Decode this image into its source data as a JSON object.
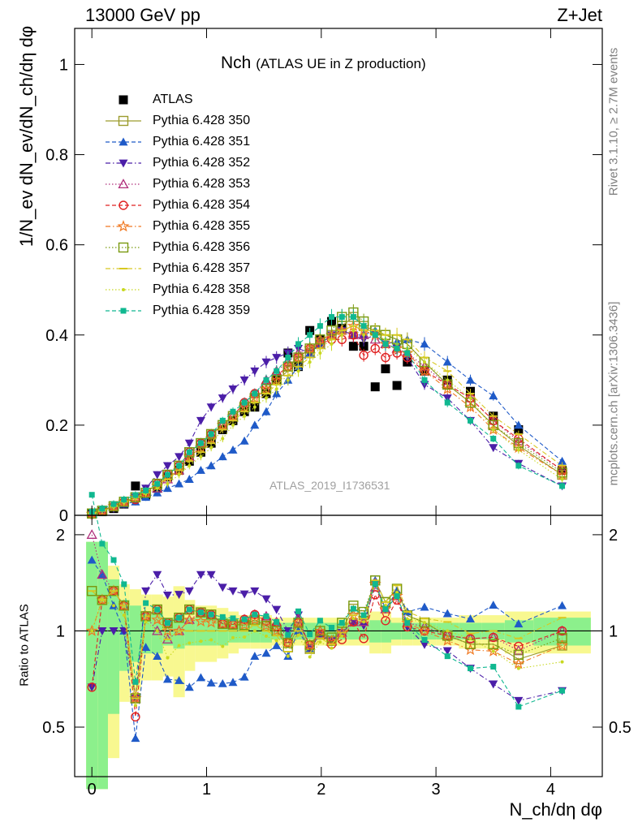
{
  "header": {
    "energy_label": "13000 GeV pp",
    "process_label": "Z+Jet",
    "title_main": "Nch",
    "title_sub": "(ATLAS UE in Z production)",
    "analysis_id": "ATLAS_2019_I1736531",
    "rivet_label": "Rivet 3.1.10, ≥ 2.7M events",
    "mcplots_label": "mcplots.cern.ch [arXiv:1306.3436]"
  },
  "axes": {
    "y_main_label": "1/N_ev dN_ev/dN_ch/dη dφ",
    "y_ratio_label": "Ratio to ATLAS",
    "x_label": "N_ch/dη dφ"
  },
  "chart_data": [
    {
      "type": "scatter",
      "panel": "main",
      "xlim": [
        -0.15,
        4.45
      ],
      "ylim": [
        0,
        1.08
      ],
      "x_ticks": [
        0,
        1,
        2,
        3,
        4
      ],
      "y_ticks": [
        "0",
        "0.2",
        "0.4",
        "0.6",
        "0.8",
        "1"
      ],
      "legend_placement": "top-left",
      "x": [
        0.0,
        0.09,
        0.19,
        0.28,
        0.38,
        0.47,
        0.57,
        0.66,
        0.76,
        0.85,
        0.95,
        1.04,
        1.14,
        1.23,
        1.33,
        1.42,
        1.52,
        1.61,
        1.71,
        1.8,
        1.9,
        1.99,
        2.09,
        2.18,
        2.28,
        2.37,
        2.47,
        2.56,
        2.66,
        2.75,
        2.9,
        3.1,
        3.3,
        3.5,
        3.72,
        4.1
      ],
      "series": [
        {
          "name": "ATLAS",
          "color": "#000000",
          "marker": "square-filled",
          "line": "none",
          "values": [
            0.003,
            0.008,
            0.015,
            0.025,
            0.065,
            0.045,
            0.06,
            0.085,
            0.1,
            0.12,
            0.14,
            0.16,
            0.19,
            0.21,
            0.23,
            0.24,
            0.27,
            0.3,
            0.36,
            0.33,
            0.41,
            0.39,
            0.43,
            0.415,
            0.375,
            0.375,
            0.285,
            0.325,
            0.288,
            0.34,
            0.32,
            0.3,
            0.275,
            0.22,
            0.19,
            0.1
          ]
        },
        {
          "name": "Pythia 6.428 350",
          "color": "#9c9c2e",
          "marker": "square-open",
          "line": "solid",
          "values": [
            0.004,
            0.01,
            0.02,
            0.03,
            0.04,
            0.05,
            0.07,
            0.09,
            0.11,
            0.14,
            0.16,
            0.18,
            0.2,
            0.22,
            0.24,
            0.26,
            0.28,
            0.3,
            0.32,
            0.34,
            0.36,
            0.38,
            0.4,
            0.42,
            0.44,
            0.42,
            0.41,
            0.4,
            0.39,
            0.38,
            0.34,
            0.29,
            0.25,
            0.2,
            0.155,
            0.09
          ]
        },
        {
          "name": "Pythia 6.428 351",
          "color": "#1f5ac8",
          "marker": "triangle-up",
          "line": "dashed",
          "values": [
            0.005,
            0.012,
            0.018,
            0.025,
            0.03,
            0.04,
            0.05,
            0.06,
            0.07,
            0.08,
            0.1,
            0.11,
            0.13,
            0.145,
            0.165,
            0.2,
            0.23,
            0.27,
            0.3,
            0.33,
            0.36,
            0.38,
            0.4,
            0.41,
            0.4,
            0.4,
            0.41,
            0.38,
            0.385,
            0.39,
            0.38,
            0.34,
            0.3,
            0.265,
            0.2,
            0.12
          ]
        },
        {
          "name": "Pythia 6.428 352",
          "color": "#4b1ea8",
          "marker": "triangle-down",
          "line": "dashdot",
          "values": [
            0.002,
            0.008,
            0.015,
            0.025,
            0.04,
            0.06,
            0.09,
            0.11,
            0.13,
            0.16,
            0.21,
            0.24,
            0.26,
            0.28,
            0.3,
            0.32,
            0.34,
            0.35,
            0.36,
            0.37,
            0.36,
            0.38,
            0.4,
            0.41,
            0.4,
            0.39,
            0.4,
            0.38,
            0.37,
            0.35,
            0.29,
            0.26,
            0.21,
            0.15,
            0.115,
            0.065
          ]
        },
        {
          "name": "Pythia 6.428 353",
          "color": "#b0307c",
          "marker": "triangle-up-open",
          "line": "dotted",
          "values": [
            0.006,
            0.012,
            0.02,
            0.03,
            0.04,
            0.05,
            0.06,
            0.08,
            0.1,
            0.13,
            0.16,
            0.18,
            0.2,
            0.22,
            0.25,
            0.27,
            0.3,
            0.32,
            0.34,
            0.36,
            0.37,
            0.39,
            0.4,
            0.41,
            0.4,
            0.4,
            0.39,
            0.38,
            0.37,
            0.36,
            0.33,
            0.29,
            0.26,
            0.21,
            0.165,
            0.1
          ]
        },
        {
          "name": "Pythia 6.428 354",
          "color": "#e02020",
          "marker": "circle-open",
          "line": "dashed",
          "values": [
            0.002,
            0.01,
            0.02,
            0.03,
            0.035,
            0.05,
            0.07,
            0.09,
            0.11,
            0.14,
            0.16,
            0.18,
            0.2,
            0.22,
            0.25,
            0.27,
            0.29,
            0.31,
            0.33,
            0.35,
            0.37,
            0.38,
            0.39,
            0.39,
            0.4,
            0.355,
            0.37,
            0.35,
            0.36,
            0.35,
            0.32,
            0.29,
            0.26,
            0.21,
            0.17,
            0.1
          ]
        },
        {
          "name": "Pythia 6.428 355",
          "color": "#f07820",
          "marker": "star-open",
          "line": "dashdot",
          "values": [
            0.003,
            0.01,
            0.02,
            0.03,
            0.04,
            0.05,
            0.065,
            0.085,
            0.1,
            0.13,
            0.15,
            0.17,
            0.2,
            0.22,
            0.24,
            0.26,
            0.28,
            0.3,
            0.33,
            0.35,
            0.37,
            0.39,
            0.4,
            0.41,
            0.42,
            0.41,
            0.4,
            0.38,
            0.37,
            0.36,
            0.32,
            0.28,
            0.24,
            0.19,
            0.15,
            0.09
          ]
        },
        {
          "name": "Pythia 6.428 356",
          "color": "#7a9a10",
          "marker": "square-open",
          "line": "dotted",
          "values": [
            0.004,
            0.01,
            0.02,
            0.03,
            0.04,
            0.05,
            0.07,
            0.09,
            0.11,
            0.14,
            0.16,
            0.18,
            0.2,
            0.22,
            0.24,
            0.26,
            0.28,
            0.3,
            0.33,
            0.35,
            0.37,
            0.39,
            0.41,
            0.44,
            0.45,
            0.43,
            0.41,
            0.4,
            0.39,
            0.38,
            0.34,
            0.29,
            0.25,
            0.2,
            0.16,
            0.095
          ]
        },
        {
          "name": "Pythia 6.428 357",
          "color": "#d8c820",
          "marker": "dash",
          "line": "dashdot",
          "values": [
            0.004,
            0.01,
            0.02,
            0.03,
            0.04,
            0.05,
            0.07,
            0.08,
            0.1,
            0.12,
            0.14,
            0.16,
            0.19,
            0.21,
            0.23,
            0.25,
            0.27,
            0.29,
            0.31,
            0.33,
            0.35,
            0.37,
            0.39,
            0.41,
            0.42,
            0.41,
            0.41,
            0.4,
            0.4,
            0.39,
            0.35,
            0.32,
            0.27,
            0.22,
            0.18,
            0.11
          ]
        },
        {
          "name": "Pythia 6.428 358",
          "color": "#c8d820",
          "marker": "dot",
          "line": "dotted",
          "values": [
            0.003,
            0.01,
            0.018,
            0.028,
            0.038,
            0.048,
            0.06,
            0.07,
            0.09,
            0.11,
            0.13,
            0.15,
            0.17,
            0.2,
            0.22,
            0.24,
            0.26,
            0.28,
            0.3,
            0.32,
            0.34,
            0.36,
            0.38,
            0.4,
            0.41,
            0.4,
            0.4,
            0.39,
            0.38,
            0.37,
            0.34,
            0.3,
            0.26,
            0.19,
            0.145,
            0.08
          ]
        },
        {
          "name": "Pythia 6.428 359",
          "color": "#10b890",
          "marker": "square-filled-small",
          "line": "dashed",
          "values": [
            0.008,
            0.015,
            0.025,
            0.035,
            0.045,
            0.055,
            0.07,
            0.09,
            0.11,
            0.14,
            0.16,
            0.18,
            0.21,
            0.23,
            0.25,
            0.27,
            0.3,
            0.32,
            0.35,
            0.38,
            0.4,
            0.42,
            0.44,
            0.44,
            0.44,
            0.42,
            0.4,
            0.38,
            0.37,
            0.36,
            0.3,
            0.25,
            0.21,
            0.17,
            0.11,
            0.065
          ]
        }
      ]
    },
    {
      "type": "scatter",
      "panel": "ratio",
      "xlim": [
        -0.15,
        4.45
      ],
      "ylim": [
        0.35,
        2.3
      ],
      "y_ticks": [
        "0.5",
        "1",
        "2"
      ],
      "y_scale": "log",
      "reference_line": 1,
      "bands": [
        {
          "name": "inner",
          "color": "#8cf08c"
        },
        {
          "name": "outer",
          "color": "#f8f890"
        }
      ],
      "band_values": {
        "x_edges": [
          -0.05,
          0.05,
          0.14,
          0.24,
          0.33,
          0.43,
          0.52,
          0.62,
          0.71,
          0.81,
          0.9,
          1.0,
          1.09,
          1.19,
          1.28,
          1.38,
          1.47,
          1.57,
          1.66,
          1.76,
          1.85,
          1.95,
          2.04,
          2.14,
          2.23,
          2.33,
          2.42,
          2.52,
          2.61,
          2.7,
          2.8,
          3.0,
          3.2,
          3.4,
          3.6,
          3.85,
          4.35
        ],
        "inner_half_width": [
          0.9,
          0.9,
          0.45,
          0.25,
          0.2,
          0.15,
          0.15,
          0.1,
          0.12,
          0.1,
          0.1,
          0.1,
          0.1,
          0.08,
          0.08,
          0.08,
          0.08,
          0.06,
          0.06,
          0.06,
          0.06,
          0.06,
          0.06,
          0.06,
          0.06,
          0.06,
          0.08,
          0.08,
          0.06,
          0.06,
          0.06,
          0.06,
          0.06,
          0.06,
          0.08,
          0.1
        ],
        "outer_half_width": [
          0.9,
          0.9,
          0.6,
          0.4,
          0.35,
          0.3,
          0.3,
          0.28,
          0.38,
          0.25,
          0.2,
          0.2,
          0.18,
          0.15,
          0.12,
          0.12,
          0.12,
          0.1,
          0.1,
          0.1,
          0.1,
          0.1,
          0.1,
          0.1,
          0.1,
          0.1,
          0.15,
          0.15,
          0.1,
          0.1,
          0.1,
          0.1,
          0.12,
          0.12,
          0.15,
          0.15
        ]
      },
      "x_ticks": [
        0,
        1,
        2,
        3,
        4
      ]
    }
  ]
}
